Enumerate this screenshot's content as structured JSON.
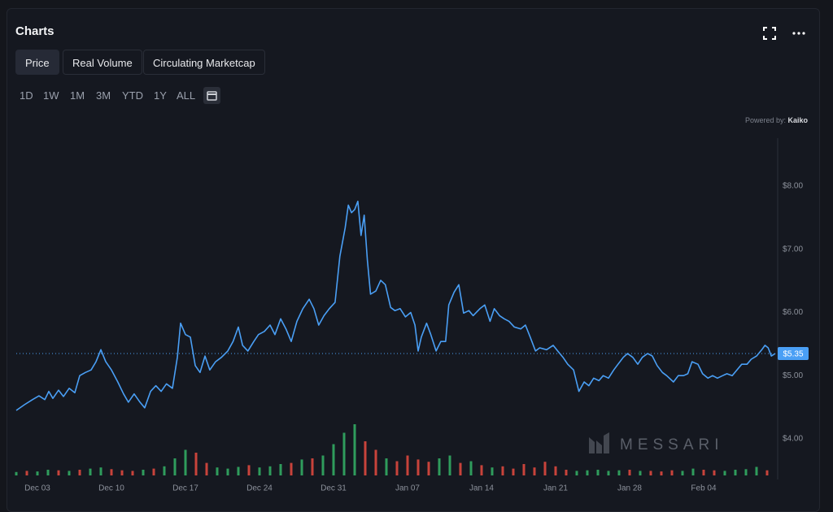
{
  "header": {
    "title": "Charts"
  },
  "tabs": [
    "Price",
    "Real Volume",
    "Circulating Marketcap"
  ],
  "selected_tab": 0,
  "ranges": [
    "1D",
    "1W",
    "1M",
    "3M",
    "YTD",
    "1Y",
    "ALL"
  ],
  "powered_by": "Powered by:",
  "provider": "Kaiko",
  "watermark": "MESSARI",
  "chart_data": {
    "type": "line",
    "color": "#4a9ff5",
    "x": [
      1.0,
      1.77,
      2.54,
      3.15,
      3.7,
      4.08,
      4.46,
      5.0,
      5.46,
      6.0,
      6.54,
      7.0,
      7.54,
      8.08,
      8.54,
      9.0,
      9.46,
      10.0,
      10.6,
      11.15,
      11.6,
      12.15,
      12.7,
      13.15,
      13.7,
      14.2,
      14.7,
      15.2,
      15.77,
      16.23,
      16.54,
      17.0,
      17.46,
      17.92,
      18.38,
      18.85,
      19.3,
      19.85,
      20.4,
      21.0,
      21.5,
      22.0,
      22.4,
      22.9,
      23.46,
      23.9,
      24.46,
      25.0,
      25.46,
      26.0,
      26.5,
      27.0,
      27.54,
      28.1,
      28.7,
      29.15,
      29.6,
      30.1,
      30.6,
      31.15,
      31.6,
      32.1,
      32.4,
      32.7,
      33.0,
      33.3,
      33.6,
      33.9,
      34.2,
      34.5,
      35.0,
      35.46,
      35.9,
      36.4,
      36.8,
      37.3,
      37.8,
      38.3,
      38.7,
      39.0,
      39.3,
      39.8,
      40.2,
      40.7,
      41.15,
      41.6,
      41.9,
      42.4,
      42.85,
      43.3,
      43.8,
      44.2,
      44.85,
      45.3,
      45.8,
      46.2,
      46.7,
      47.15,
      47.6,
      48.1,
      48.7,
      49.15,
      49.6,
      50.1,
      50.5,
      51.15,
      51.77,
      52.2,
      52.7,
      53.15,
      53.7,
      54.2,
      54.7,
      55.15,
      55.6,
      56.1,
      56.5,
      57.0,
      57.5,
      57.9,
      58.4,
      58.8,
      59.3,
      59.77,
      60.2,
      60.7,
      61.15,
      61.6,
      62.1,
      62.5,
      63.15,
      63.6,
      64.1,
      64.5,
      64.9,
      65.46,
      65.9,
      66.4,
      66.85,
      67.3,
      67.8,
      68.2,
      68.7,
      69.15,
      69.6,
      70.1,
      70.5,
      71.0,
      71.5,
      71.8,
      72.1,
      72.4,
      72.77
    ],
    "values": [
      4.45,
      4.54,
      4.62,
      4.68,
      4.62,
      4.75,
      4.64,
      4.77,
      4.67,
      4.8,
      4.73,
      5.0,
      5.05,
      5.09,
      5.22,
      5.41,
      5.22,
      5.09,
      4.9,
      4.71,
      4.58,
      4.71,
      4.58,
      4.49,
      4.75,
      4.84,
      4.75,
      4.87,
      4.8,
      5.29,
      5.83,
      5.65,
      5.61,
      5.16,
      5.05,
      5.31,
      5.09,
      5.22,
      5.29,
      5.39,
      5.54,
      5.77,
      5.48,
      5.39,
      5.54,
      5.65,
      5.7,
      5.8,
      5.65,
      5.9,
      5.74,
      5.54,
      5.86,
      6.06,
      6.21,
      6.06,
      5.8,
      5.95,
      6.06,
      6.16,
      6.89,
      7.34,
      7.7,
      7.58,
      7.63,
      7.76,
      7.22,
      7.54,
      6.83,
      6.29,
      6.34,
      6.51,
      6.44,
      6.08,
      6.03,
      6.06,
      5.93,
      6.0,
      5.8,
      5.39,
      5.61,
      5.83,
      5.65,
      5.39,
      5.54,
      5.54,
      6.12,
      6.32,
      6.44,
      5.99,
      6.03,
      5.95,
      6.06,
      6.12,
      5.86,
      6.06,
      5.95,
      5.9,
      5.86,
      5.77,
      5.74,
      5.8,
      5.61,
      5.39,
      5.44,
      5.41,
      5.48,
      5.39,
      5.29,
      5.18,
      5.09,
      4.75,
      4.9,
      4.84,
      4.96,
      4.92,
      5.0,
      4.96,
      5.09,
      5.18,
      5.29,
      5.35,
      5.29,
      5.18,
      5.29,
      5.35,
      5.31,
      5.16,
      5.05,
      5.0,
      4.9,
      5.0,
      5.0,
      5.03,
      5.22,
      5.18,
      5.03,
      4.96,
      5.0,
      4.96,
      5.0,
      5.03,
      5.0,
      5.09,
      5.18,
      5.18,
      5.26,
      5.31,
      5.41,
      5.48,
      5.44,
      5.31,
      5.35
    ],
    "xlim": [
      1,
      72.77
    ],
    "xticks": [
      {
        "value": 3,
        "label": "Dec 03"
      },
      {
        "value": 10,
        "label": "Dec 10"
      },
      {
        "value": 17,
        "label": "Dec 17"
      },
      {
        "value": 24,
        "label": "Dec 24"
      },
      {
        "value": 31,
        "label": "Dec 31"
      },
      {
        "value": 38,
        "label": "Jan 07"
      },
      {
        "value": 45,
        "label": "Jan 14"
      },
      {
        "value": 52,
        "label": "Jan 21"
      },
      {
        "value": 59,
        "label": "Jan 28"
      },
      {
        "value": 66,
        "label": "Feb 04"
      }
    ],
    "ylim": [
      3.42,
      8.76
    ],
    "yticks": [
      {
        "value": 4,
        "label": "$4.00"
      },
      {
        "value": 5,
        "label": "$5.00"
      },
      {
        "value": 6,
        "label": "$6.00"
      },
      {
        "value": 7,
        "label": "$7.00"
      },
      {
        "value": 8,
        "label": "$8.00"
      }
    ],
    "last_price": {
      "value": 5.35,
      "label": "$5.35"
    },
    "volume": {
      "axis": "y2",
      "x": [
        1,
        2,
        3,
        4,
        5,
        6,
        7,
        8,
        9,
        10,
        11,
        12,
        13,
        14,
        15,
        16,
        17,
        18,
        19,
        20,
        21,
        22,
        23,
        24,
        25,
        26,
        27,
        28,
        29,
        30,
        31,
        32,
        33,
        34,
        35,
        36,
        37,
        38,
        39,
        40,
        41,
        42,
        43,
        44,
        45,
        46,
        47,
        48,
        49,
        50,
        51,
        52,
        53,
        54,
        55,
        56,
        57,
        58,
        59,
        60,
        61,
        62,
        63,
        64,
        65,
        66,
        67,
        68,
        69,
        70,
        71,
        72
      ],
      "values": [
        6,
        8,
        7,
        10,
        9,
        8,
        10,
        12,
        14,
        11,
        9,
        8,
        10,
        12,
        16,
        30,
        45,
        40,
        22,
        14,
        12,
        15,
        18,
        14,
        16,
        20,
        22,
        28,
        30,
        35,
        55,
        75,
        90,
        60,
        45,
        30,
        25,
        35,
        28,
        24,
        30,
        35,
        22,
        25,
        18,
        14,
        16,
        12,
        20,
        14,
        24,
        16,
        10,
        8,
        9,
        10,
        8,
        9,
        10,
        8,
        8,
        7,
        9,
        8,
        12,
        10,
        9,
        8,
        10,
        11,
        15,
        9
      ],
      "colors": [
        "#2f9c5c",
        "#c8433b",
        "#2f9c5c",
        "#2f9c5c",
        "#c8433b",
        "#2f9c5c",
        "#c8433b",
        "#2f9c5c",
        "#2f9c5c",
        "#c8433b",
        "#c8433b",
        "#c8433b",
        "#2f9c5c",
        "#c8433b",
        "#2f9c5c",
        "#2f9c5c",
        "#2f9c5c",
        "#c8433b",
        "#c8433b",
        "#2f9c5c",
        "#2f9c5c",
        "#2f9c5c",
        "#c8433b",
        "#2f9c5c",
        "#2f9c5c",
        "#2f9c5c",
        "#c8433b",
        "#2f9c5c",
        "#c8433b",
        "#2f9c5c",
        "#2f9c5c",
        "#2f9c5c",
        "#2f9c5c",
        "#c8433b",
        "#c8433b",
        "#2f9c5c",
        "#c8433b",
        "#c8433b",
        "#c8433b",
        "#c8433b",
        "#2f9c5c",
        "#2f9c5c",
        "#c8433b",
        "#2f9c5c",
        "#c8433b",
        "#2f9c5c",
        "#c8433b",
        "#c8433b",
        "#c8433b",
        "#c8433b",
        "#c8433b",
        "#c8433b",
        "#c8433b",
        "#2f9c5c",
        "#2f9c5c",
        "#2f9c5c",
        "#2f9c5c",
        "#2f9c5c",
        "#c8433b",
        "#2f9c5c",
        "#c8433b",
        "#c8433b",
        "#c8433b",
        "#2f9c5c",
        "#2f9c5c",
        "#c8433b",
        "#c8433b",
        "#2f9c5c",
        "#2f9c5c",
        "#2f9c5c",
        "#2f9c5c",
        "#c8433b"
      ]
    },
    "y2lim": [
      0,
      100
    ]
  }
}
